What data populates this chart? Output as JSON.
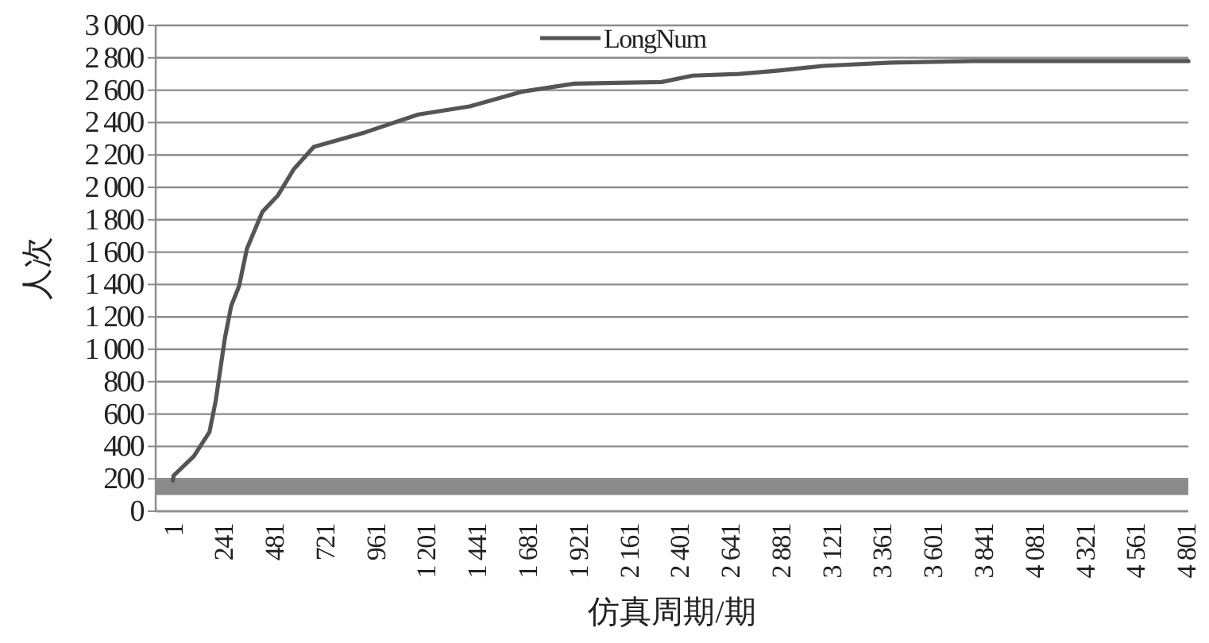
{
  "chart_data": {
    "type": "line",
    "xlabel": "仿真周期/期",
    "ylabel": "人次",
    "x": [
      1,
      5,
      101,
      175,
      204,
      248,
      278,
      315,
      352,
      426,
      499,
      573,
      669,
      913,
      1164,
      1408,
      1652,
      1903,
      2316,
      2464,
      2685,
      2863,
      3084,
      3402,
      3793,
      4812
    ],
    "series": [
      {
        "name": "LongNum",
        "color": "#555555",
        "values": [
          190,
          220,
          340,
          490,
          680,
          1070,
          1270,
          1390,
          1620,
          1850,
          1950,
          2110,
          2250,
          2340,
          2450,
          2500,
          2590,
          2640,
          2650,
          2690,
          2700,
          2720,
          2750,
          2770,
          2780,
          2780
        ]
      }
    ],
    "xlim": [
      -80,
      4812
    ],
    "xticks": [
      1,
      241,
      481,
      721,
      961,
      {
        "value": 1201,
        "label": "1 201"
      },
      {
        "value": 1441,
        "label": "1 441"
      },
      {
        "value": 1681,
        "label": "1 681"
      },
      {
        "value": 1921,
        "label": "1 921"
      },
      {
        "value": 2161,
        "label": "2 161"
      },
      {
        "value": 2401,
        "label": "2 401"
      },
      {
        "value": 2641,
        "label": "2 641"
      },
      {
        "value": 2881,
        "label": "2 881"
      },
      {
        "value": 3121,
        "label": "3 121"
      },
      {
        "value": 3361,
        "label": "3 361"
      },
      {
        "value": 3601,
        "label": "3 601"
      },
      {
        "value": 3841,
        "label": "3 841"
      },
      {
        "value": 4081,
        "label": "4 081"
      },
      {
        "value": 4321,
        "label": "4 321"
      },
      {
        "value": 4561,
        "label": "4 561"
      },
      {
        "value": 4801,
        "label": "4 801"
      }
    ],
    "ylim": [
      0,
      3000
    ],
    "yticks": [
      0,
      200,
      400,
      600,
      800,
      {
        "value": 1000,
        "label": "1 000"
      },
      {
        "value": 1200,
        "label": "1 200"
      },
      {
        "value": 1400,
        "label": "1 400"
      },
      {
        "value": 1600,
        "label": "1 600"
      },
      {
        "value": 1800,
        "label": "1 800"
      },
      {
        "value": 2000,
        "label": "2 000"
      },
      {
        "value": 2200,
        "label": "2 200"
      },
      {
        "value": 2400,
        "label": "2 400"
      },
      {
        "value": 2600,
        "label": "2 600"
      },
      {
        "value": 2800,
        "label": "2 800"
      },
      {
        "value": 3000,
        "label": "3 000"
      }
    ],
    "bands": [
      {
        "axis": "y",
        "from": 100,
        "to": 195,
        "color": "#8a8a8a"
      }
    ],
    "grid": "y",
    "legend": "top",
    "marker": "none",
    "line_style": "solid"
  }
}
